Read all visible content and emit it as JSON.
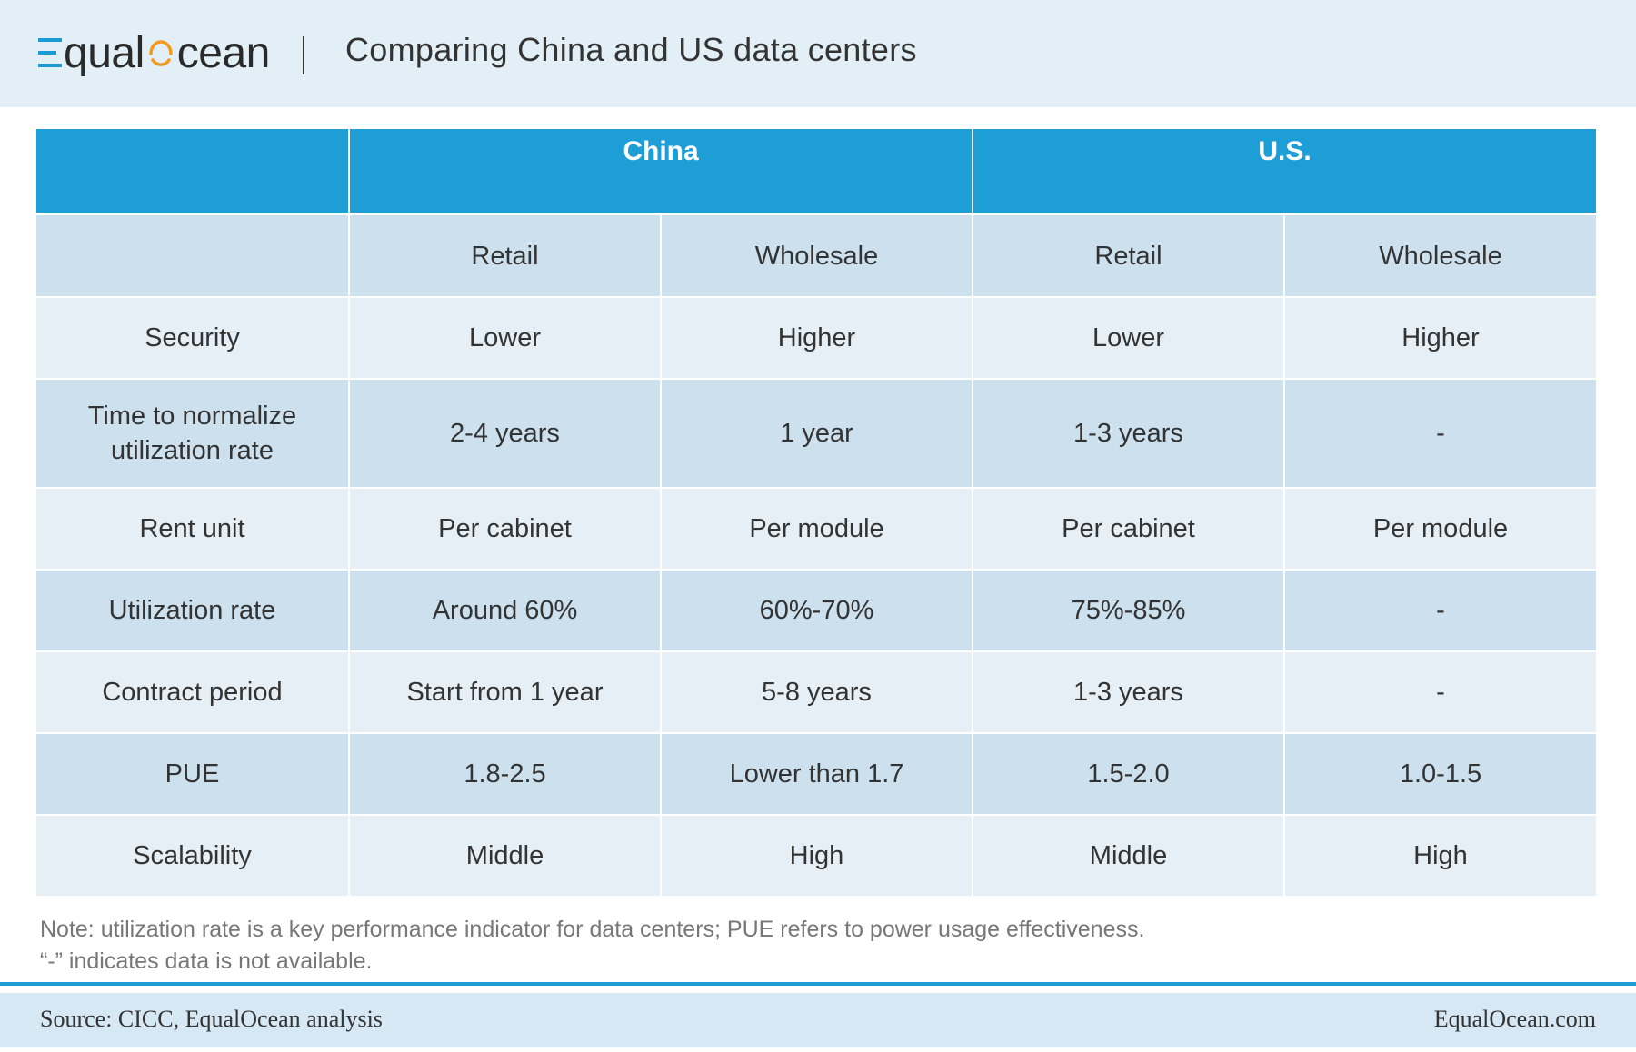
{
  "header": {
    "brand": {
      "left": "qual",
      "right": "cean"
    },
    "title": "Comparing China and US data centers"
  },
  "table": {
    "groups": [
      "",
      "China",
      "U.S."
    ],
    "subheaders": [
      "",
      "Retail",
      "Wholesale",
      "Retail",
      "Wholesale"
    ],
    "rows": [
      {
        "label": "Security",
        "values": [
          "Lower",
          "Higher",
          "Lower",
          "Higher"
        ]
      },
      {
        "label": "Time to normalize utilization rate",
        "values": [
          "2-4 years",
          "1 year",
          "1-3 years",
          "-"
        ]
      },
      {
        "label": "Rent unit",
        "values": [
          "Per cabinet",
          "Per module",
          "Per cabinet",
          "Per module"
        ]
      },
      {
        "label": "Utilization rate",
        "values": [
          "Around 60%",
          "60%-70%",
          "75%-85%",
          "-"
        ]
      },
      {
        "label": "Contract period",
        "values": [
          "Start from 1 year",
          "5-8 years",
          "1-3 years",
          "-"
        ]
      },
      {
        "label": "PUE",
        "values": [
          "1.8-2.5",
          "Lower than 1.7",
          "1.5-2.0",
          "1.0-1.5"
        ]
      },
      {
        "label": "Scalability",
        "values": [
          "Middle",
          "High",
          "Middle",
          "High"
        ]
      }
    ]
  },
  "notes": {
    "line1": "Note:  utilization rate is a key performance indicator for data centers; PUE refers to power usage effectiveness.",
    "line2": "“-” indicates data is not available."
  },
  "footer": {
    "source": "Source: CICC,  EqualOcean analysis",
    "site": "EqualOcean.com"
  },
  "colors": {
    "accent": "#1e9ed6",
    "logo_orange": "#f39a1e",
    "row_dark": "#cce0ee",
    "row_light": "#e6eff6",
    "header_bg": "#e3eff7"
  }
}
